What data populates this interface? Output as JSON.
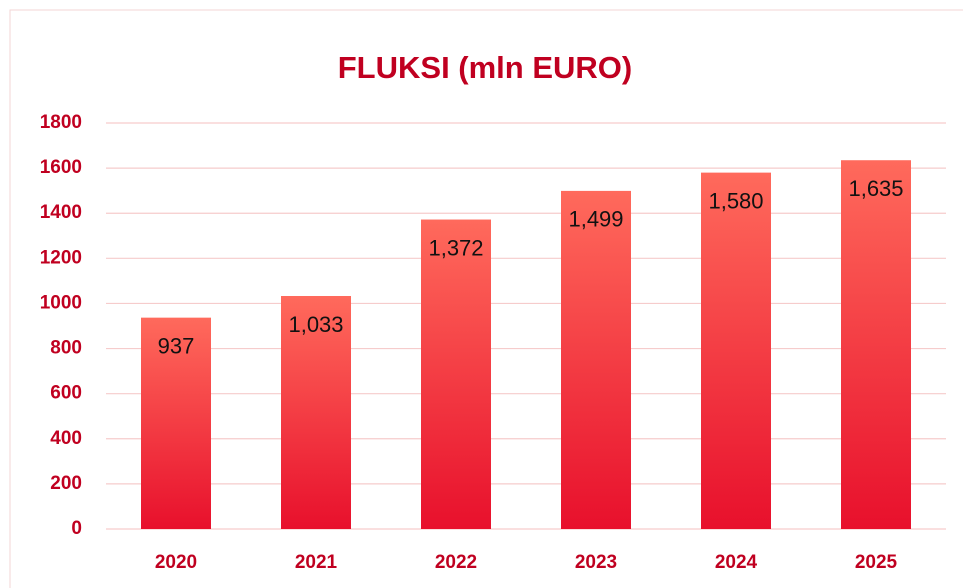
{
  "chart_data": {
    "type": "bar",
    "title": "FLUKSI (mln EURO)",
    "categories": [
      "2020",
      "2021",
      "2022",
      "2023",
      "2024",
      "2025"
    ],
    "values": [
      937,
      1033,
      1372,
      1499,
      1580,
      1635
    ],
    "value_labels": [
      "937",
      "1,033",
      "1,372",
      "1,499",
      "1,580",
      "1,635"
    ],
    "color": "#e8102c",
    "ylim": [
      0,
      1800
    ],
    "yticks": [
      0,
      200,
      400,
      600,
      800,
      1000,
      1200,
      1400,
      1600,
      1800
    ],
    "grid": true
  }
}
